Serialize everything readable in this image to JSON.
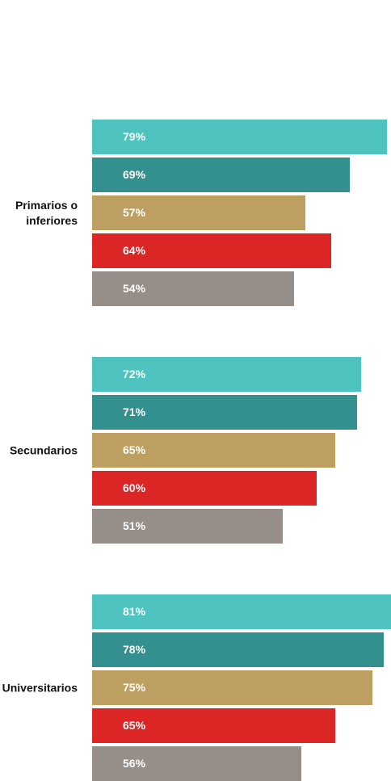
{
  "chart_data": {
    "type": "bar",
    "orientation": "horizontal",
    "categories": [
      "Primarios o\ninferiores",
      "Secundarios",
      "Universitarios"
    ],
    "series": [
      {
        "color": "#4fc3bf",
        "values": [
          79,
          72,
          81
        ],
        "labels": [
          "79%",
          "72%",
          "81%"
        ]
      },
      {
        "color": "#34908e",
        "values": [
          69,
          71,
          78
        ],
        "labels": [
          "69%",
          "71%",
          "78%"
        ]
      },
      {
        "color": "#bd9f62",
        "values": [
          57,
          65,
          75
        ],
        "labels": [
          "57%",
          "65%",
          "75%"
        ]
      },
      {
        "color": "#dc2626",
        "values": [
          64,
          60,
          65
        ],
        "labels": [
          "64%",
          "60%",
          "65%"
        ]
      },
      {
        "color": "#968e89",
        "values": [
          54,
          51,
          56
        ],
        "labels": [
          "54%",
          "51%",
          "56%"
        ]
      }
    ],
    "xlim": [
      0,
      80
    ],
    "grid": false,
    "legend": "none"
  }
}
